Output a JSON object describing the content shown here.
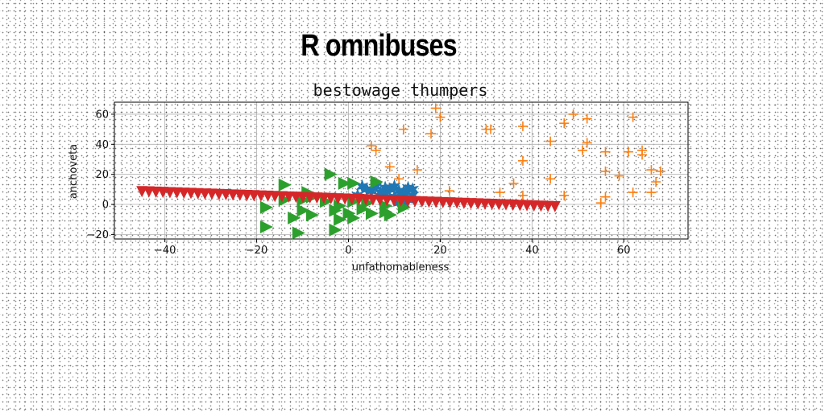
{
  "figure": {
    "title": "R omnibuses"
  },
  "chart_data": {
    "type": "scatter",
    "title": "bestowage thumpers",
    "xlabel": "unfathomableness",
    "ylabel": "anchoveta",
    "xlim": [
      -51,
      74
    ],
    "ylim": [
      -23,
      68
    ],
    "xticks": [
      -40,
      -20,
      0,
      20,
      40,
      60
    ],
    "yticks": [
      -20,
      0,
      20,
      40,
      60
    ],
    "grid": true,
    "series": [
      {
        "color": "#ff7f0e",
        "marker": "plus",
        "points": [
          [
            19,
            64
          ],
          [
            20,
            58
          ],
          [
            12,
            50
          ],
          [
            18,
            47
          ],
          [
            30,
            50
          ],
          [
            31,
            50
          ],
          [
            38,
            52
          ],
          [
            49,
            60
          ],
          [
            52,
            57
          ],
          [
            47,
            54
          ],
          [
            62,
            58
          ],
          [
            5,
            39
          ],
          [
            6,
            36
          ],
          [
            9,
            25
          ],
          [
            15,
            23
          ],
          [
            22,
            9
          ],
          [
            33,
            8
          ],
          [
            36,
            14
          ],
          [
            38,
            29
          ],
          [
            38,
            6
          ],
          [
            44,
            42
          ],
          [
            44,
            17
          ],
          [
            47,
            6
          ],
          [
            51,
            36
          ],
          [
            52,
            41
          ],
          [
            56,
            35
          ],
          [
            56,
            22
          ],
          [
            59,
            19
          ],
          [
            61,
            35
          ],
          [
            62,
            8
          ],
          [
            64,
            36
          ],
          [
            64,
            33
          ],
          [
            66,
            23
          ],
          [
            68,
            22
          ],
          [
            67,
            15
          ],
          [
            66,
            8
          ],
          [
            56,
            5
          ],
          [
            55,
            1
          ],
          [
            11,
            17
          ]
        ]
      },
      {
        "color": "#1f77b4",
        "marker": "star",
        "points": [
          [
            3,
            12
          ],
          [
            4,
            10
          ],
          [
            5,
            9
          ],
          [
            6,
            12
          ],
          [
            7,
            8
          ],
          [
            8,
            11
          ],
          [
            9,
            10
          ],
          [
            10,
            12
          ],
          [
            11,
            9
          ],
          [
            12,
            8
          ],
          [
            13,
            11
          ],
          [
            14,
            10
          ],
          [
            12,
            6
          ],
          [
            11,
            1
          ],
          [
            12,
            0
          ],
          [
            13,
            3
          ],
          [
            2,
            6
          ],
          [
            14,
            6
          ],
          [
            8,
            7
          ],
          [
            10,
            5
          ]
        ]
      },
      {
        "color": "#2ca02c",
        "marker": "triangle-right",
        "points": [
          [
            -14,
            13
          ],
          [
            -4,
            20
          ],
          [
            -1,
            14
          ],
          [
            1,
            14
          ],
          [
            6,
            15
          ],
          [
            -9,
            8
          ],
          [
            -8,
            5
          ],
          [
            -14,
            3
          ],
          [
            -18,
            -2
          ],
          [
            -10,
            3
          ],
          [
            -5,
            2
          ],
          [
            -2,
            -1
          ],
          [
            1,
            2
          ],
          [
            4,
            1
          ],
          [
            -10,
            -4
          ],
          [
            -3,
            -4
          ],
          [
            0,
            -6
          ],
          [
            3,
            -3
          ],
          [
            8,
            -1
          ],
          [
            5,
            -6
          ],
          [
            9,
            -7
          ],
          [
            12,
            -2
          ],
          [
            -8,
            -7
          ],
          [
            -12,
            -9
          ],
          [
            -2,
            -10
          ],
          [
            1,
            -9
          ],
          [
            -18,
            -15
          ],
          [
            -11,
            -19
          ],
          [
            -3,
            -17
          ],
          [
            8,
            -5
          ]
        ]
      },
      {
        "color": "#d62728",
        "marker": "triangle-down",
        "line": {
          "x0": -45,
          "y0": 9,
          "x1": 45,
          "y1": -1,
          "n": 60
        }
      }
    ]
  }
}
